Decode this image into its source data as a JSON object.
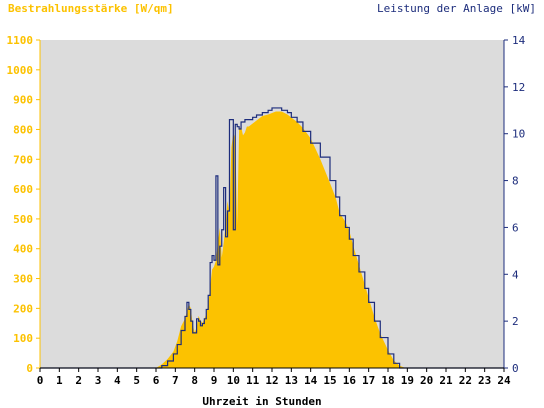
{
  "chart_data": {
    "type": "area",
    "title": "",
    "left_axis": {
      "label": "Bestrahlungsstärke [W/qm]",
      "range": [
        0,
        1100
      ],
      "ticks": [
        0,
        100,
        200,
        300,
        400,
        500,
        600,
        700,
        800,
        900,
        1000,
        1100
      ],
      "tick_labels": [
        "0",
        "100",
        "200",
        "300",
        "400",
        "500",
        "600",
        "700",
        "800",
        "900",
        "1000",
        "1100"
      ],
      "color": "#fcc200"
    },
    "right_axis": {
      "label": "Leistung der Anlage [kW]",
      "range": [
        0,
        14
      ],
      "ticks": [
        0,
        2,
        4,
        6,
        8,
        10,
        12,
        14
      ],
      "tick_labels": [
        "0",
        "2",
        "4",
        "6",
        "8",
        "10",
        "12",
        "14"
      ],
      "color": "#1d2d7c"
    },
    "x_axis": {
      "label": "Uhrzeit in Stunden",
      "range": [
        0,
        24
      ],
      "ticks": [
        0,
        1,
        2,
        3,
        4,
        5,
        6,
        7,
        8,
        9,
        10,
        11,
        12,
        13,
        14,
        15,
        16,
        17,
        18,
        19,
        20,
        21,
        22,
        23,
        24
      ],
      "tick_labels": [
        "0",
        "1",
        "2",
        "3",
        "4",
        "5",
        "6",
        "7",
        "8",
        "9",
        "10",
        "11",
        "12",
        "13",
        "14",
        "15",
        "16",
        "17",
        "18",
        "19",
        "20",
        "21",
        "22",
        "23",
        "24"
      ]
    },
    "grid": false,
    "plot_background": "#dcdcdc",
    "series": [
      {
        "name": "Bestrahlungsstärke [W/qm]",
        "kind": "area",
        "axis": "left",
        "color": "#fcc200",
        "x": [
          0,
          6.0,
          6.3,
          6.6,
          6.9,
          7.1,
          7.3,
          7.5,
          7.6,
          7.7,
          7.8,
          7.9,
          8.0,
          8.1,
          8.2,
          8.3,
          8.4,
          8.5,
          8.6,
          8.7,
          8.8,
          8.9,
          9.0,
          9.1,
          9.2,
          9.3,
          9.4,
          9.5,
          9.6,
          9.7,
          9.8,
          9.9,
          10.0,
          10.1,
          10.2,
          10.3,
          10.4,
          10.5,
          10.6,
          10.7,
          10.8,
          11.0,
          11.2,
          11.5,
          11.8,
          12.0,
          12.2,
          12.5,
          12.8,
          13.0,
          13.3,
          13.6,
          14.0,
          14.5,
          15.0,
          15.3,
          15.5,
          15.8,
          16.0,
          16.2,
          16.5,
          16.8,
          17.0,
          17.3,
          17.6,
          18.0,
          18.3,
          18.6,
          18.9,
          19.2,
          24
        ],
        "y": [
          0,
          0,
          12,
          30,
          55,
          90,
          140,
          165,
          190,
          215,
          200,
          145,
          120,
          135,
          175,
          160,
          150,
          165,
          180,
          215,
          270,
          330,
          340,
          360,
          420,
          470,
          370,
          420,
          480,
          560,
          520,
          740,
          790,
          770,
          480,
          800,
          810,
          780,
          790,
          810,
          810,
          820,
          830,
          845,
          850,
          855,
          860,
          860,
          850,
          840,
          825,
          805,
          770,
          700,
          620,
          570,
          520,
          490,
          460,
          410,
          345,
          280,
          235,
          170,
          115,
          60,
          25,
          8,
          0,
          0,
          0
        ]
      },
      {
        "name": "Leistung der Anlage [kW]",
        "kind": "line",
        "axis": "right",
        "color": "#1d2d7c",
        "x": [
          0,
          6.0,
          6.3,
          6.6,
          6.9,
          7.1,
          7.3,
          7.5,
          7.6,
          7.7,
          7.8,
          7.9,
          8.0,
          8.1,
          8.2,
          8.3,
          8.4,
          8.5,
          8.6,
          8.7,
          8.8,
          8.9,
          9.0,
          9.1,
          9.2,
          9.3,
          9.4,
          9.5,
          9.6,
          9.7,
          9.8,
          9.9,
          10.0,
          10.1,
          10.2,
          10.3,
          10.4,
          10.5,
          10.6,
          10.7,
          10.8,
          11.0,
          11.2,
          11.5,
          11.8,
          12.0,
          12.2,
          12.5,
          12.8,
          13.0,
          13.3,
          13.6,
          14.0,
          14.5,
          15.0,
          15.3,
          15.5,
          15.8,
          16.0,
          16.2,
          16.5,
          16.8,
          17.0,
          17.3,
          17.6,
          18.0,
          18.3,
          18.6,
          18.9,
          19.2,
          24
        ],
        "y": [
          0,
          0,
          0.1,
          0.3,
          0.6,
          1.0,
          1.6,
          2.2,
          2.8,
          2.5,
          2.0,
          1.5,
          1.5,
          2.1,
          2.0,
          1.8,
          1.9,
          2.1,
          2.5,
          3.1,
          4.5,
          4.8,
          4.6,
          8.2,
          4.4,
          5.2,
          5.9,
          7.7,
          5.6,
          6.7,
          10.6,
          10.6,
          5.9,
          10.4,
          10.3,
          10.2,
          10.5,
          10.5,
          10.6,
          10.6,
          10.6,
          10.7,
          10.8,
          10.9,
          11.0,
          11.1,
          11.1,
          11.0,
          10.9,
          10.7,
          10.5,
          10.1,
          9.6,
          9.0,
          8.0,
          7.3,
          6.5,
          6.0,
          5.5,
          4.8,
          4.1,
          3.4,
          2.8,
          2.0,
          1.3,
          0.6,
          0.2,
          0.0,
          0,
          0,
          0
        ]
      }
    ],
    "legend": "none"
  }
}
